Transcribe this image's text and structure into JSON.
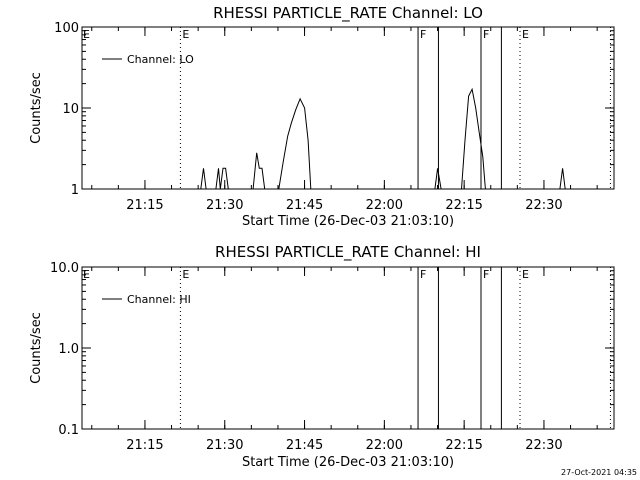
{
  "footer": {
    "timestamp": "27-Oct-2021 04:35"
  },
  "chart_data": [
    {
      "type": "line",
      "title": "RHESSI PARTICLE_RATE Channel: LO",
      "xlabel": "Start Time (26-Dec-03 21:03:10)",
      "ylabel": "Counts/sec",
      "yscale": "log",
      "ylim": [
        1,
        100
      ],
      "yticks": [
        1,
        10,
        100
      ],
      "ytick_labels": [
        "1",
        "10",
        "100"
      ],
      "xlim": [
        "21:03:10",
        "22:41:00"
      ],
      "xticks": [
        "21:15",
        "21:30",
        "21:45",
        "22:00",
        "22:15",
        "22:30"
      ],
      "legend": {
        "position": "top-left",
        "entries": [
          "Channel: LO"
        ]
      },
      "series": [
        {
          "name": "Channel: LO",
          "x": [
            "21:03:10",
            "21:25:30",
            "21:26:00",
            "21:26:30",
            "21:28:20",
            "21:28:50",
            "21:29:10",
            "21:29:40",
            "21:30:10",
            "21:30:40",
            "21:32:30",
            "21:35:20",
            "21:36:00",
            "21:36:30",
            "21:37:00",
            "21:37:30",
            "21:40:10",
            "21:41:00",
            "21:41:50",
            "21:42:30",
            "21:43:20",
            "21:44:10",
            "21:45:00",
            "21:45:40",
            "21:46:10",
            "22:09:30",
            "22:10:00",
            "22:10:40",
            "22:14:30",
            "22:15:10",
            "22:15:50",
            "22:16:30",
            "22:17:10",
            "22:17:50",
            "22:18:30",
            "22:19:00",
            "22:33:00",
            "22:33:30",
            "22:34:00",
            "22:41:00"
          ],
          "y": [
            1,
            1,
            1.8,
            1,
            1,
            1.8,
            1,
            1.8,
            1.8,
            1,
            1,
            1,
            2.8,
            1.8,
            1.8,
            1,
            1,
            2.2,
            4.5,
            6.5,
            9.5,
            13,
            10,
            4,
            1,
            1,
            1.8,
            1,
            1,
            4,
            14,
            17,
            10,
            5,
            2.5,
            1,
            1,
            1.8,
            1,
            1
          ]
        }
      ],
      "vlines": [
        {
          "x": "21:21:40",
          "style": "dotted",
          "label": "E"
        },
        {
          "x": "22:06:20",
          "style": "solid",
          "label": "F"
        },
        {
          "x": "22:10:10",
          "style": "solid",
          "label": ""
        },
        {
          "x": "22:18:10",
          "style": "solid",
          "label": "F"
        },
        {
          "x": "22:22:00",
          "style": "solid",
          "label": ""
        },
        {
          "x": "22:25:30",
          "style": "dotted",
          "label": "E"
        },
        {
          "x": "22:42:30",
          "style": "dotted",
          "label": ""
        }
      ],
      "start_marker": {
        "x": "21:03:10",
        "label": "E"
      }
    },
    {
      "type": "line",
      "title": "RHESSI PARTICLE_RATE Channel: HI",
      "xlabel": "Start Time (26-Dec-03 21:03:10)",
      "ylabel": "Counts/sec",
      "yscale": "log",
      "ylim": [
        0.1,
        10
      ],
      "yticks": [
        0.1,
        1,
        10
      ],
      "ytick_labels": [
        "0.1",
        "1.0",
        "10.0"
      ],
      "xlim": [
        "21:03:10",
        "22:41:00"
      ],
      "xticks": [
        "21:15",
        "21:30",
        "21:45",
        "22:00",
        "22:15",
        "22:30"
      ],
      "legend": {
        "position": "top-left",
        "entries": [
          "Channel: HI"
        ]
      },
      "series": [
        {
          "name": "Channel: HI",
          "x": [],
          "y": []
        }
      ],
      "vlines": [
        {
          "x": "21:21:40",
          "style": "dotted",
          "label": "E"
        },
        {
          "x": "22:06:20",
          "style": "solid",
          "label": "F"
        },
        {
          "x": "22:10:10",
          "style": "solid",
          "label": ""
        },
        {
          "x": "22:18:10",
          "style": "solid",
          "label": "F"
        },
        {
          "x": "22:22:00",
          "style": "solid",
          "label": ""
        },
        {
          "x": "22:25:30",
          "style": "dotted",
          "label": "E"
        },
        {
          "x": "22:42:30",
          "style": "dotted",
          "label": ""
        }
      ],
      "start_marker": {
        "x": "21:03:10",
        "label": "E"
      }
    }
  ]
}
